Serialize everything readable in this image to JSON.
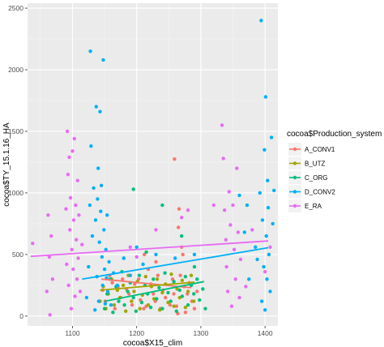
{
  "chart_data": {
    "type": "scatter",
    "xlabel": "cocoa$X15_clim",
    "ylabel": "cocoa$TY_15.1.16_HA",
    "xlim": [
      1030,
      1420
    ],
    "ylim": [
      -80,
      2540
    ],
    "x_ticks": [
      1100,
      1200,
      1300,
      1400
    ],
    "x_tick_labels": [
      "1100",
      "1200",
      "1300",
      "1400"
    ],
    "y_ticks": [
      0,
      500,
      1000,
      1500,
      2000,
      2500
    ],
    "y_tick_labels": [
      "0",
      "500",
      "1000",
      "1500",
      "2000",
      "2500"
    ],
    "grid": true,
    "panel_background": "#ebebeb",
    "legend": {
      "title": "cocoa$Production_system",
      "placement": "right"
    },
    "series": [
      {
        "name": "A_CONV1",
        "color": "#F8766D",
        "fit_line": [
          [
            1145,
            300
          ],
          [
            1285,
            230
          ]
        ],
        "points": [
          [
            1147,
            210
          ],
          [
            1151,
            120
          ],
          [
            1158,
            330
          ],
          [
            1162,
            270
          ],
          [
            1166,
            60
          ],
          [
            1171,
            240
          ],
          [
            1175,
            150
          ],
          [
            1178,
            300
          ],
          [
            1184,
            220
          ],
          [
            1188,
            180
          ],
          [
            1193,
            90
          ],
          [
            1197,
            260
          ],
          [
            1203,
            300
          ],
          [
            1206,
            130
          ],
          [
            1211,
            60
          ],
          [
            1215,
            80
          ],
          [
            1218,
            380
          ],
          [
            1222,
            260
          ],
          [
            1226,
            180
          ],
          [
            1229,
            120
          ],
          [
            1233,
            330
          ],
          [
            1237,
            60
          ],
          [
            1241,
            210
          ],
          [
            1245,
            150
          ],
          [
            1252,
            90
          ],
          [
            1256,
            300
          ],
          [
            1259,
            1275
          ],
          [
            1262,
            80
          ],
          [
            1265,
            720
          ],
          [
            1266,
            870
          ],
          [
            1268,
            330
          ],
          [
            1270,
            560
          ],
          [
            1272,
            500
          ],
          [
            1274,
            240
          ],
          [
            1276,
            30
          ],
          [
            1279,
            180
          ],
          [
            1282,
            270
          ],
          [
            1286,
            120
          ],
          [
            1290,
            60
          ],
          [
            1294,
            200
          ],
          [
            1264,
            20
          ],
          [
            1258,
            180
          ],
          [
            1230,
            440
          ],
          [
            1212,
            500
          ]
        ]
      },
      {
        "name": "B_UTZ",
        "color": "#A3A500",
        "fit_line": [
          [
            1143,
            210
          ],
          [
            1290,
            275
          ]
        ],
        "points": [
          [
            1143,
            120
          ],
          [
            1148,
            240
          ],
          [
            1152,
            60
          ],
          [
            1156,
            180
          ],
          [
            1161,
            300
          ],
          [
            1165,
            90
          ],
          [
            1170,
            210
          ],
          [
            1174,
            150
          ],
          [
            1179,
            250
          ],
          [
            1183,
            40
          ],
          [
            1187,
            330
          ],
          [
            1192,
            120
          ],
          [
            1196,
            200
          ],
          [
            1201,
            280
          ],
          [
            1205,
            60
          ],
          [
            1209,
            170
          ],
          [
            1214,
            320
          ],
          [
            1218,
            90
          ],
          [
            1223,
            240
          ],
          [
            1227,
            140
          ],
          [
            1232,
            300
          ],
          [
            1236,
            50
          ],
          [
            1240,
            190
          ],
          [
            1245,
            260
          ],
          [
            1249,
            110
          ],
          [
            1254,
            340
          ],
          [
            1258,
            80
          ],
          [
            1263,
            220
          ],
          [
            1267,
            150
          ],
          [
            1271,
            290
          ],
          [
            1276,
            70
          ],
          [
            1280,
            200
          ],
          [
            1285,
            330
          ],
          [
            1289,
            120
          ]
        ]
      },
      {
        "name": "C_ORG",
        "color": "#00BF7D",
        "fit_line": [
          [
            1150,
            120
          ],
          [
            1305,
            280
          ]
        ],
        "points": [
          [
            1150,
            60
          ],
          [
            1154,
            180
          ],
          [
            1159,
            300
          ],
          [
            1163,
            30
          ],
          [
            1168,
            240
          ],
          [
            1172,
            120
          ],
          [
            1177,
            360
          ],
          [
            1181,
            90
          ],
          [
            1186,
            200
          ],
          [
            1190,
            270
          ],
          [
            1195,
            150
          ],
          [
            1199,
            40
          ],
          [
            1204,
            330
          ],
          [
            1208,
            110
          ],
          [
            1213,
            250
          ],
          [
            1217,
            180
          ],
          [
            1222,
            70
          ],
          [
            1226,
            300
          ],
          [
            1231,
            140
          ],
          [
            1235,
            230
          ],
          [
            1240,
            60
          ],
          [
            1244,
            350
          ],
          [
            1249,
            190
          ],
          [
            1253,
            120
          ],
          [
            1258,
            280
          ],
          [
            1262,
            40
          ],
          [
            1267,
            210
          ],
          [
            1271,
            160
          ],
          [
            1276,
            320
          ],
          [
            1280,
            90
          ],
          [
            1285,
            250
          ],
          [
            1289,
            180
          ],
          [
            1294,
            300
          ],
          [
            1298,
            130
          ],
          [
            1303,
            220
          ],
          [
            1307,
            60
          ],
          [
            1195,
            1030
          ],
          [
            1240,
            900
          ],
          [
            1270,
            650
          ],
          [
            1290,
            400
          ],
          [
            1215,
            520
          ],
          [
            1180,
            470
          ]
        ]
      },
      {
        "name": "D_CONV2",
        "color": "#00B0F6",
        "fit_line": [
          [
            1115,
            300
          ],
          [
            1405,
            555
          ]
        ],
        "points": [
          [
            1122,
            150
          ],
          [
            1125,
            400
          ],
          [
            1127,
            900
          ],
          [
            1128,
            2150
          ],
          [
            1129,
            1380
          ],
          [
            1131,
            650
          ],
          [
            1133,
            1040
          ],
          [
            1135,
            50
          ],
          [
            1136,
            780
          ],
          [
            1137,
            1700
          ],
          [
            1138,
            320
          ],
          [
            1139,
            950
          ],
          [
            1140,
            1200
          ],
          [
            1141,
            120
          ],
          [
            1142,
            600
          ],
          [
            1143,
            1660
          ],
          [
            1144,
            850
          ],
          [
            1145,
            1060
          ],
          [
            1146,
            480
          ],
          [
            1147,
            250
          ],
          [
            1148,
            2080
          ],
          [
            1149,
            700
          ],
          [
            1150,
            380
          ],
          [
            1151,
            100
          ],
          [
            1152,
            540
          ],
          [
            1153,
            310
          ],
          [
            1154,
            820
          ],
          [
            1155,
            200
          ],
          [
            1157,
            440
          ],
          [
            1160,
            90
          ],
          [
            1164,
            350
          ],
          [
            1170,
            250
          ],
          [
            1180,
            470
          ],
          [
            1190,
            330
          ],
          [
            1200,
            560
          ],
          [
            1210,
            420
          ],
          [
            1230,
            500
          ],
          [
            1260,
            470
          ],
          [
            1290,
            500
          ],
          [
            1360,
            980
          ],
          [
            1372,
            900
          ],
          [
            1385,
            560
          ],
          [
            1392,
            1000
          ],
          [
            1394,
            2400
          ],
          [
            1396,
            780
          ],
          [
            1398,
            400
          ],
          [
            1399,
            1350
          ],
          [
            1400,
            50
          ],
          [
            1401,
            1780
          ],
          [
            1402,
            650
          ],
          [
            1403,
            300
          ],
          [
            1404,
            1100
          ],
          [
            1405,
            880
          ],
          [
            1406,
            500
          ],
          [
            1408,
            200
          ],
          [
            1410,
            1450
          ],
          [
            1412,
            750
          ],
          [
            1414,
            1020
          ],
          [
            1395,
            120
          ],
          [
            1388,
            460
          ],
          [
            1375,
            300
          ],
          [
            1368,
            680
          ]
        ]
      },
      {
        "name": "E_RA",
        "color": "#E76BF3",
        "fit_line": [
          [
            1035,
            485
          ],
          [
            1405,
            610
          ]
        ],
        "points": [
          [
            1038,
            590
          ],
          [
            1060,
            200
          ],
          [
            1062,
            820
          ],
          [
            1064,
            480
          ],
          [
            1065,
            10
          ],
          [
            1067,
            650
          ],
          [
            1069,
            300
          ],
          [
            1090,
            870
          ],
          [
            1091,
            420
          ],
          [
            1092,
            1500
          ],
          [
            1093,
            1150
          ],
          [
            1094,
            250
          ],
          [
            1095,
            1290
          ],
          [
            1096,
            700
          ],
          [
            1097,
            960
          ],
          [
            1098,
            60
          ],
          [
            1099,
            540
          ],
          [
            1100,
            1340
          ],
          [
            1101,
            380
          ],
          [
            1102,
            780
          ],
          [
            1103,
            1440
          ],
          [
            1104,
            160
          ],
          [
            1105,
            900
          ],
          [
            1106,
            620
          ],
          [
            1107,
            300
          ],
          [
            1108,
            1100
          ],
          [
            1109,
            470
          ],
          [
            1110,
            820
          ],
          [
            1112,
            200
          ],
          [
            1115,
            580
          ],
          [
            1190,
            560
          ],
          [
            1200,
            480
          ],
          [
            1230,
            700
          ],
          [
            1270,
            800
          ],
          [
            1280,
            860
          ],
          [
            1320,
            900
          ],
          [
            1333,
            1550
          ],
          [
            1335,
            1280
          ],
          [
            1337,
            860
          ],
          [
            1339,
            620
          ],
          [
            1340,
            400
          ],
          [
            1342,
            200
          ],
          [
            1344,
            1010
          ],
          [
            1346,
            740
          ],
          [
            1348,
            80
          ],
          [
            1350,
            900
          ],
          [
            1352,
            540
          ],
          [
            1354,
            300
          ],
          [
            1356,
            1200
          ],
          [
            1358,
            680
          ],
          [
            1360,
            150
          ],
          [
            1362,
            460
          ],
          [
            1370,
            240
          ],
          [
            1380,
            700
          ],
          [
            1400,
            360
          ],
          [
            1408,
            560
          ]
        ]
      }
    ]
  }
}
